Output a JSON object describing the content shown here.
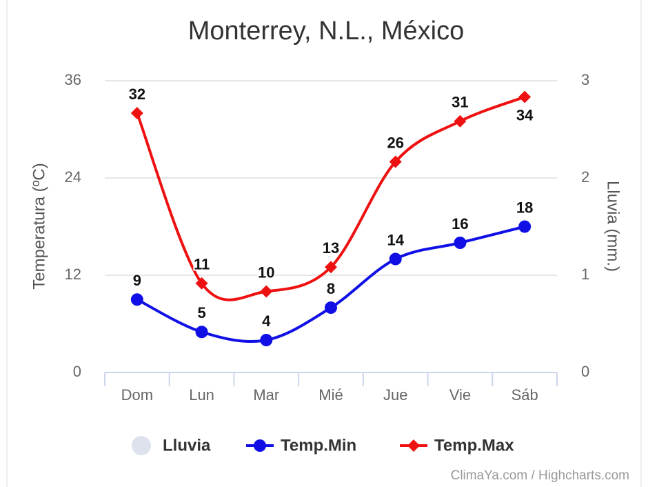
{
  "chart_data": {
    "type": "line",
    "title": "Monterrey, N.L., México",
    "categories": [
      "Dom",
      "Lun",
      "Mar",
      "Mié",
      "Jue",
      "Vie",
      "Sáb"
    ],
    "series": [
      {
        "name": "Lluvia",
        "type": "column",
        "axis": "y2",
        "color": "#dde2ec",
        "values": [
          0,
          0,
          0,
          0,
          0,
          0,
          0
        ]
      },
      {
        "name": "Temp.Min",
        "color": "#1010e6",
        "marker": "circle",
        "values": [
          9,
          5,
          4,
          8,
          14,
          16,
          18
        ]
      },
      {
        "name": "Temp.Max",
        "color": "#ee1111",
        "marker": "diamond",
        "values": [
          32,
          11,
          10,
          13,
          26,
          31,
          34
        ]
      }
    ],
    "ylabel": "Temperatura (ºC)",
    "y2label": "Lluvia (mm.)",
    "ylim": [
      0,
      36
    ],
    "yticks": [
      0,
      12,
      24,
      36
    ],
    "y2lim": [
      0,
      3
    ],
    "y2ticks": [
      0,
      1,
      2,
      3
    ],
    "grid": true,
    "smooth": true,
    "legend": "bottom",
    "credits": "ClimaYa.com / Highcharts.com"
  }
}
